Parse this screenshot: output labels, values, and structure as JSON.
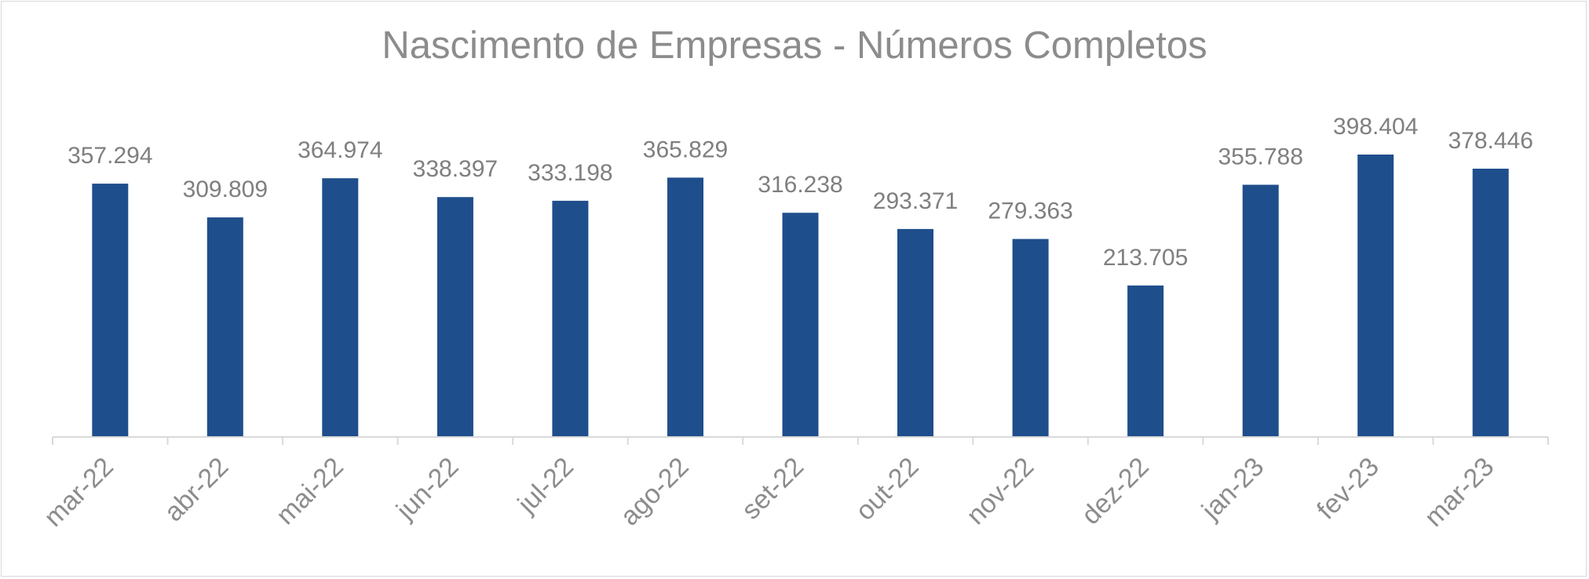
{
  "chart_data": {
    "type": "bar",
    "title": "Nascimento de Empresas - Números Completos",
    "xlabel": "",
    "ylabel": "",
    "categories": [
      "mar-22",
      "abr-22",
      "mai-22",
      "jun-22",
      "jul-22",
      "ago-22",
      "set-22",
      "out-22",
      "nov-22",
      "dez-22",
      "jan-23",
      "fev-23",
      "mar-23"
    ],
    "values": [
      357294,
      309809,
      364974,
      338397,
      333198,
      365829,
      316238,
      293371,
      279363,
      213705,
      355788,
      398404,
      378446
    ],
    "data_labels": [
      "357.294",
      "309.809",
      "364.974",
      "338.397",
      "333.198",
      "365.829",
      "316.238",
      "293.371",
      "279.363",
      "213.705",
      "355.788",
      "398.404",
      "378.446"
    ],
    "ylim": [
      0,
      398404
    ],
    "grid": false,
    "legend": "none",
    "bar_color": "#1f4e8c",
    "text_color": "#8c8c8c",
    "axis_color": "#d9d9d9"
  }
}
